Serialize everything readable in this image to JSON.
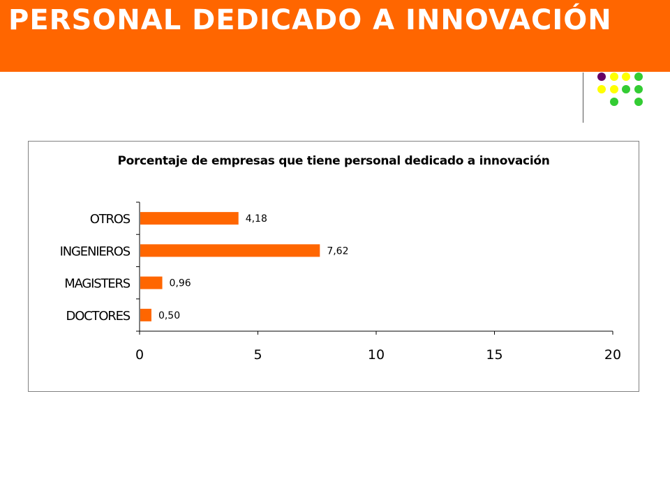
{
  "header": {
    "title": "PERSONAL DEDICADO A INNOVACIÓN",
    "background": "#ff6600"
  },
  "decoration": {
    "dot_colors": {
      "purple": "#660066",
      "yellow": "#ffff00",
      "green": "#33cc33"
    }
  },
  "chart_data": {
    "type": "bar",
    "orientation": "horizontal",
    "title": "Porcentaje de empresas que tiene personal dedicado a innovación",
    "categories": [
      "DOCTORES",
      "MAGISTERS",
      "INGENIEROS",
      "OTROS"
    ],
    "values": [
      0.5,
      0.96,
      7.62,
      4.18
    ],
    "data_labels": [
      "0,50",
      "0,96",
      "7,62",
      "4,18"
    ],
    "xlim": [
      0,
      20
    ],
    "xticks": [
      0,
      5,
      10,
      15,
      20
    ],
    "xlabel": "",
    "ylabel": "",
    "bar_color": "#ff6600",
    "grid": false,
    "legend": false
  }
}
